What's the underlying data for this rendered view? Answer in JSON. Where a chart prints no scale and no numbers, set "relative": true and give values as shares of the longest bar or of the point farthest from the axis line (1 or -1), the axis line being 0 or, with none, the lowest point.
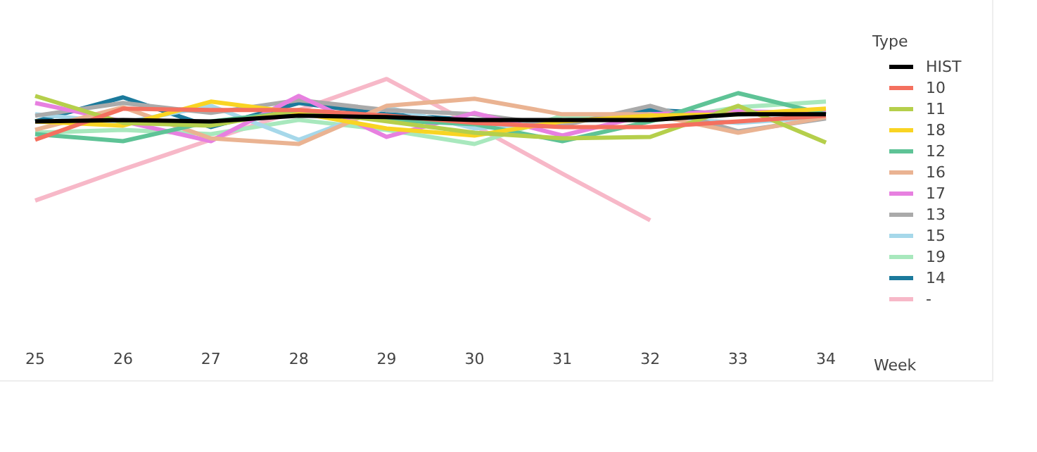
{
  "chart_data": {
    "type": "line",
    "xlabel": "Week",
    "legend_title": "Type",
    "legend": "right",
    "relative": true,
    "grid": false,
    "marker": "none",
    "line_style": "solid",
    "categories": [
      "25",
      "26",
      "27",
      "28",
      "29",
      "30",
      "31",
      "32",
      "33",
      "34"
    ],
    "series": [
      {
        "name": "HIST",
        "color": "#000000",
        "values": [
          0.7,
          0.71,
          0.7,
          0.74,
          0.73,
          0.71,
          0.71,
          0.71,
          0.75,
          0.75
        ]
      },
      {
        "name": "10",
        "color": "#f4705f",
        "values": [
          0.57,
          0.79,
          0.78,
          0.78,
          0.74,
          0.69,
          0.66,
          0.66,
          0.7,
          0.74
        ]
      },
      {
        "name": "11",
        "color": "#b5cf4b",
        "values": [
          0.88,
          0.69,
          0.67,
          0.78,
          0.7,
          0.62,
          0.58,
          0.59,
          0.81,
          0.55
        ]
      },
      {
        "name": "18",
        "color": "#f9d423",
        "values": [
          0.7,
          0.67,
          0.84,
          0.76,
          0.65,
          0.6,
          0.7,
          0.74,
          0.75,
          0.79
        ]
      },
      {
        "name": "12",
        "color": "#5ec396",
        "values": [
          0.61,
          0.56,
          0.7,
          0.77,
          0.71,
          0.68,
          0.56,
          0.7,
          0.9,
          0.75
        ]
      },
      {
        "name": "16",
        "color": "#eab392",
        "values": [
          0.64,
          0.8,
          0.58,
          0.54,
          0.81,
          0.86,
          0.75,
          0.75,
          0.62,
          0.73
        ]
      },
      {
        "name": "17",
        "color": "#e780e0",
        "values": [
          0.83,
          0.7,
          0.56,
          0.88,
          0.59,
          0.76,
          0.6,
          0.75,
          0.77,
          0.76
        ]
      },
      {
        "name": "13",
        "color": "#aaaaaa",
        "values": [
          0.74,
          0.83,
          0.76,
          0.85,
          0.78,
          0.75,
          0.67,
          0.81,
          0.63,
          0.72
        ]
      },
      {
        "name": "15",
        "color": "#a6d8ea",
        "values": [
          0.75,
          0.69,
          0.81,
          0.57,
          0.8,
          0.65,
          0.7,
          0.73,
          0.69,
          0.73
        ]
      },
      {
        "name": "19",
        "color": "#a8e8bd",
        "values": [
          0.62,
          0.64,
          0.61,
          0.71,
          0.64,
          0.54,
          0.74,
          0.7,
          0.8,
          0.84
        ]
      },
      {
        "name": "14",
        "color": "#1b7a9c",
        "values": [
          0.7,
          0.87,
          0.66,
          0.83,
          0.75,
          0.71,
          0.7,
          0.78,
          0.75,
          0.76
        ]
      },
      {
        "name": "-",
        "color": "#f7b8c8",
        "values": [
          0.14,
          0.36,
          0.57,
          0.78,
          1.0,
          0.67,
          0.33,
          0.0,
          null,
          null
        ]
      }
    ]
  }
}
